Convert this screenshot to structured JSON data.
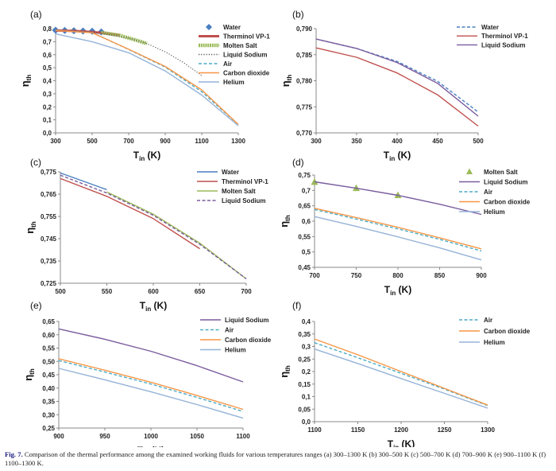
{
  "caption": {
    "label": "Fig. 7.",
    "text": "Comparison of the thermal performance among the examined working fluids for various temperatures ranges (a) 300–1300 K (b) 300–500 K (c) 500–700 K (d) 700–900 K (e) 900–1100 K (f) 1100–1300 K."
  },
  "styles": {
    "Water": {
      "color": "#4a7fc1",
      "dash": "",
      "marker": "diamond"
    },
    "Therminol VP-1": {
      "color": "#c0504d",
      "dash": "",
      "width_hint": "thick"
    },
    "Molten Salt": {
      "color": "#9bbb59",
      "dash": "",
      "marker": "triangle"
    },
    "Liquid Sodium": {
      "color": "#7a5c9e",
      "dash": ""
    },
    "Air": {
      "color": "#4bacc6",
      "dash": "dashed"
    },
    "Carbon dioxide": {
      "color": "#f79646",
      "dash": ""
    },
    "Helium": {
      "color": "#95b3d7",
      "dash": ""
    }
  },
  "chart_data": [
    {
      "type": "line",
      "panel": "(a)",
      "xlabel_main": "T",
      "xlabel_sub": "in",
      "xlabel_unit": " (K)",
      "ylabel_main": "η",
      "ylabel_sub": "th",
      "xlim": [
        300,
        1300
      ],
      "ylim": [
        0,
        0.8
      ],
      "xticks": [
        "300",
        "500",
        "700",
        "900",
        "1100",
        "1300"
      ],
      "yticks": [
        "0,0",
        "0,1",
        "0,2",
        "0,3",
        "0,4",
        "0,5",
        "0,6",
        "0,7",
        "0,8"
      ],
      "legend": [
        "Water",
        "Therminol VP-1",
        "Molten Salt",
        "Liquid Sodium",
        "Air",
        "Carbon dioxide",
        "Helium"
      ],
      "series": [
        {
          "name": "Water",
          "style": "markers",
          "x": [
            300,
            350,
            400,
            450,
            500,
            550
          ],
          "y": [
            0.788,
            0.786,
            0.784,
            0.782,
            0.78,
            0.775
          ]
        },
        {
          "name": "Therminol VP-1",
          "style": "thickline",
          "x": [
            300,
            400,
            500,
            550,
            650
          ],
          "y": [
            0.786,
            0.782,
            0.774,
            0.768,
            0.751
          ]
        },
        {
          "name": "Molten Salt",
          "style": "thickdots",
          "x": [
            550,
            600,
            650,
            700,
            750,
            800
          ],
          "y": [
            0.77,
            0.76,
            0.748,
            0.728,
            0.708,
            0.685
          ]
        },
        {
          "name": "Liquid Sodium",
          "style": "dotted",
          "x": [
            300,
            500,
            700,
            800,
            900,
            1000,
            1100
          ],
          "y": [
            0.788,
            0.774,
            0.728,
            0.685,
            0.622,
            0.54,
            0.44
          ]
        },
        {
          "name": "Air",
          "style": "dashed",
          "x": [
            300,
            500,
            700,
            900,
            1100,
            1300
          ],
          "y": [
            0.788,
            0.77,
            0.64,
            0.505,
            0.315,
            0.065
          ]
        },
        {
          "name": "Carbon dioxide",
          "style": "line",
          "x": [
            300,
            500,
            700,
            900,
            1100,
            1300
          ],
          "y": [
            0.786,
            0.768,
            0.642,
            0.51,
            0.33,
            0.065
          ]
        },
        {
          "name": "Helium",
          "style": "line",
          "x": [
            300,
            500,
            700,
            900,
            1100,
            1300
          ],
          "y": [
            0.76,
            0.7,
            0.615,
            0.475,
            0.29,
            0.055
          ]
        }
      ]
    },
    {
      "type": "line",
      "panel": "(b)",
      "xlabel_main": "T",
      "xlabel_sub": "in",
      "xlabel_unit": " (K)",
      "ylabel_main": "η",
      "ylabel_sub": "th",
      "xlim": [
        300,
        500
      ],
      "ylim": [
        0.77,
        0.79
      ],
      "xticks": [
        "300",
        "350",
        "400",
        "450",
        "500"
      ],
      "yticks": [
        "0,770",
        "0,775",
        "0,780",
        "0,785",
        "0,790"
      ],
      "legend": [
        "Water",
        "Therminol VP-1",
        "Liquid Sodium"
      ],
      "series": [
        {
          "name": "Water",
          "style": "dashed",
          "x": [
            300,
            350,
            400,
            450,
            500
          ],
          "y": [
            0.788,
            0.7862,
            0.7837,
            0.7799,
            0.774
          ]
        },
        {
          "name": "Therminol VP-1",
          "style": "line",
          "x": [
            300,
            350,
            400,
            450,
            500
          ],
          "y": [
            0.7863,
            0.7845,
            0.7815,
            0.7773,
            0.7713
          ]
        },
        {
          "name": "Liquid Sodium",
          "style": "line",
          "x": [
            300,
            350,
            400,
            450,
            500
          ],
          "y": [
            0.788,
            0.7862,
            0.7835,
            0.7795,
            0.7732
          ]
        }
      ]
    },
    {
      "type": "line",
      "panel": "(c)",
      "xlabel_main": "T",
      "xlabel_sub": "in",
      "xlabel_unit": " (K)",
      "ylabel_main": "η",
      "ylabel_sub": "th",
      "xlim": [
        500,
        700
      ],
      "ylim": [
        0.725,
        0.775
      ],
      "xticks": [
        "500",
        "550",
        "600",
        "650",
        "700"
      ],
      "yticks": [
        "0,725",
        "0,735",
        "0,745",
        "0,755",
        "0,765",
        "0,775"
      ],
      "legend": [
        "Water",
        "Therminol VP-1",
        "Molten Salt",
        "Liquid Sodium"
      ],
      "series": [
        {
          "name": "Water",
          "style": "line",
          "x": [
            500,
            550
          ],
          "y": [
            0.7745,
            0.767
          ]
        },
        {
          "name": "Therminol VP-1",
          "style": "line",
          "x": [
            500,
            550,
            600,
            650
          ],
          "y": [
            0.772,
            0.764,
            0.754,
            0.7405
          ]
        },
        {
          "name": "Molten Salt",
          "style": "line",
          "x": [
            550,
            600,
            650,
            700
          ],
          "y": [
            0.766,
            0.756,
            0.743,
            0.727
          ]
        },
        {
          "name": "Liquid Sodium",
          "style": "dashed",
          "x": [
            500,
            550,
            600,
            650,
            700
          ],
          "y": [
            0.7735,
            0.7655,
            0.7555,
            0.7425,
            0.727
          ]
        }
      ]
    },
    {
      "type": "line",
      "panel": "(d)",
      "xlabel_main": "T",
      "xlabel_sub": "in",
      "xlabel_unit": " (K)",
      "ylabel_main": "η",
      "ylabel_sub": "th",
      "xlim": [
        700,
        900
      ],
      "ylim": [
        0.45,
        0.75
      ],
      "xticks": [
        "700",
        "750",
        "800",
        "850",
        "900"
      ],
      "yticks": [
        "0,45",
        "0,5",
        "0,55",
        "0,6",
        "0,65",
        "0,7",
        "0,75"
      ],
      "legend": [
        "Molten Salt",
        "Liquid Sodium",
        "Air",
        "Carbon dioxide",
        "Helium"
      ],
      "series": [
        {
          "name": "Molten Salt",
          "style": "markers",
          "x": [
            700,
            750,
            800
          ],
          "y": [
            0.727,
            0.707,
            0.684
          ]
        },
        {
          "name": "Liquid Sodium",
          "style": "line",
          "x": [
            700,
            750,
            800,
            850,
            900
          ],
          "y": [
            0.728,
            0.707,
            0.684,
            0.655,
            0.622
          ]
        },
        {
          "name": "Air",
          "style": "dashed",
          "x": [
            700,
            750,
            800,
            850,
            900
          ],
          "y": [
            0.638,
            0.607,
            0.575,
            0.541,
            0.503
          ]
        },
        {
          "name": "Carbon dioxide",
          "style": "line",
          "x": [
            700,
            750,
            800,
            850,
            900
          ],
          "y": [
            0.642,
            0.612,
            0.58,
            0.546,
            0.51
          ]
        },
        {
          "name": "Helium",
          "style": "line",
          "x": [
            700,
            750,
            800,
            850,
            900
          ],
          "y": [
            0.615,
            0.583,
            0.549,
            0.513,
            0.474
          ]
        }
      ]
    },
    {
      "type": "line",
      "panel": "(e)",
      "xlabel_main": "T",
      "xlabel_sub": "in",
      "xlabel_unit": " (K)",
      "ylabel_main": "η",
      "ylabel_sub": "th",
      "xlim": [
        900,
        1100
      ],
      "ylim": [
        0.25,
        0.65
      ],
      "xticks": [
        "900",
        "950",
        "1000",
        "1050",
        "1100"
      ],
      "yticks": [
        "0,25",
        "0,30",
        "0,35",
        "0,40",
        "0,45",
        "0,50",
        "0,55",
        "0,60",
        "0,65"
      ],
      "legend": [
        "Liquid Sodium",
        "Air",
        "Carbon dioxide",
        "Helium"
      ],
      "series": [
        {
          "name": "Liquid Sodium",
          "style": "line",
          "x": [
            900,
            950,
            1000,
            1050,
            1100
          ],
          "y": [
            0.622,
            0.583,
            0.538,
            0.484,
            0.423
          ]
        },
        {
          "name": "Air",
          "style": "dashed",
          "x": [
            900,
            950,
            1000,
            1050,
            1100
          ],
          "y": [
            0.503,
            0.46,
            0.415,
            0.365,
            0.312
          ]
        },
        {
          "name": "Carbon dioxide",
          "style": "line",
          "x": [
            900,
            950,
            1000,
            1050,
            1100
          ],
          "y": [
            0.51,
            0.467,
            0.422,
            0.372,
            0.32
          ]
        },
        {
          "name": "Helium",
          "style": "line",
          "x": [
            900,
            950,
            1000,
            1050,
            1100
          ],
          "y": [
            0.474,
            0.431,
            0.386,
            0.338,
            0.287
          ]
        }
      ]
    },
    {
      "type": "line",
      "panel": "(f)",
      "xlabel_main": "T",
      "xlabel_sub": "in",
      "xlabel_unit": " (K)",
      "ylabel_main": "η",
      "ylabel_sub": "th",
      "xlim": [
        1100,
        1300
      ],
      "ylim": [
        0,
        0.4
      ],
      "xticks": [
        "1100",
        "1150",
        "1200",
        "1250",
        "1300"
      ],
      "yticks": [
        "0,0",
        "0,05",
        "0,1",
        "0,15",
        "0,2",
        "0,25",
        "0,3",
        "0,35",
        "0,4"
      ],
      "legend": [
        "Air",
        "Carbon dioxide",
        "Helium"
      ],
      "series": [
        {
          "name": "Air",
          "style": "dashed",
          "x": [
            1100,
            1150,
            1200,
            1250,
            1300
          ],
          "y": [
            0.315,
            0.255,
            0.193,
            0.13,
            0.064
          ]
        },
        {
          "name": "Carbon dioxide",
          "style": "line",
          "x": [
            1100,
            1150,
            1200,
            1250,
            1300
          ],
          "y": [
            0.33,
            0.267,
            0.2,
            0.133,
            0.066
          ]
        },
        {
          "name": "Helium",
          "style": "line",
          "x": [
            1100,
            1150,
            1200,
            1250,
            1300
          ],
          "y": [
            0.29,
            0.232,
            0.172,
            0.113,
            0.054
          ]
        }
      ]
    }
  ]
}
